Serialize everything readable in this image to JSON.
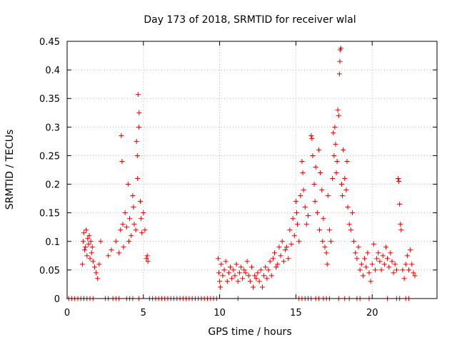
{
  "chart_data": {
    "type": "scatter",
    "title": "Day 173 of 2018, SRMTID for receiver wlal",
    "xlabel": "GPS time / hours",
    "ylabel": "SRMTID / TECUs",
    "xlim": [
      0,
      24.25
    ],
    "ylim": [
      0,
      0.45
    ],
    "xticks": [
      0,
      5,
      10,
      15,
      20
    ],
    "yticks": [
      0,
      0.05,
      0.1,
      0.15,
      0.2,
      0.25,
      0.3,
      0.35,
      0.4,
      0.45
    ],
    "xtick_labels": [
      "0",
      "5",
      "10",
      "15",
      "20"
    ],
    "ytick_labels": [
      "0",
      "0.05",
      "0.1",
      "0.15",
      "0.2",
      "0.25",
      "0.3",
      "0.35",
      "0.4",
      "0.45"
    ],
    "grid": true,
    "marker": "+",
    "color": "#e00000",
    "series": [
      {
        "name": "SRMTID",
        "points": [
          [
            1.0,
            0.06
          ],
          [
            1.05,
            0.1
          ],
          [
            1.1,
            0.115
          ],
          [
            1.15,
            0.085
          ],
          [
            1.2,
            0.09
          ],
          [
            1.25,
            0.12
          ],
          [
            1.3,
            0.075
          ],
          [
            1.35,
            0.105
          ],
          [
            1.4,
            0.095
          ],
          [
            1.45,
            0.11
          ],
          [
            1.5,
            0.07
          ],
          [
            1.55,
            0.1
          ],
          [
            1.6,
            0.08
          ],
          [
            1.65,
            0.09
          ],
          [
            1.7,
            0.065
          ],
          [
            1.8,
            0.055
          ],
          [
            1.9,
            0.045
          ],
          [
            2.0,
            0.035
          ],
          [
            2.1,
            0.06
          ],
          [
            2.2,
            0.1
          ],
          [
            2.7,
            0.075
          ],
          [
            2.9,
            0.085
          ],
          [
            3.2,
            0.1
          ],
          [
            3.4,
            0.08
          ],
          [
            3.5,
            0.12
          ],
          [
            3.55,
            0.285
          ],
          [
            3.6,
            0.24
          ],
          [
            3.65,
            0.13
          ],
          [
            3.7,
            0.09
          ],
          [
            3.8,
            0.15
          ],
          [
            3.9,
            0.125
          ],
          [
            4.0,
            0.2
          ],
          [
            4.05,
            0.1
          ],
          [
            4.1,
            0.14
          ],
          [
            4.2,
            0.11
          ],
          [
            4.3,
            0.18
          ],
          [
            4.35,
            0.16
          ],
          [
            4.4,
            0.13
          ],
          [
            4.5,
            0.12
          ],
          [
            4.55,
            0.275
          ],
          [
            4.6,
            0.25
          ],
          [
            4.62,
            0.21
          ],
          [
            4.65,
            0.357
          ],
          [
            4.7,
            0.3
          ],
          [
            4.72,
            0.325
          ],
          [
            4.8,
            0.17
          ],
          [
            4.85,
            0.14
          ],
          [
            4.9,
            0.115
          ],
          [
            5.0,
            0.15
          ],
          [
            5.1,
            0.12
          ],
          [
            5.2,
            0.07
          ],
          [
            5.25,
            0.075
          ],
          [
            5.3,
            0.065
          ],
          [
            9.9,
            0.07
          ],
          [
            9.95,
            0.045
          ],
          [
            10.0,
            0.03
          ],
          [
            10.05,
            0.02
          ],
          [
            10.1,
            0.06
          ],
          [
            10.2,
            0.04
          ],
          [
            10.3,
            0.05
          ],
          [
            10.4,
            0.065
          ],
          [
            10.5,
            0.03
          ],
          [
            10.6,
            0.045
          ],
          [
            10.7,
            0.055
          ],
          [
            10.8,
            0.035
          ],
          [
            10.9,
            0.05
          ],
          [
            11.0,
            0.04
          ],
          [
            11.1,
            0.06
          ],
          [
            11.2,
            0.03
          ],
          [
            11.3,
            0.045
          ],
          [
            11.4,
            0.055
          ],
          [
            11.5,
            0.035
          ],
          [
            11.6,
            0.05
          ],
          [
            11.7,
            0.045
          ],
          [
            11.8,
            0.065
          ],
          [
            11.9,
            0.04
          ],
          [
            12.0,
            0.03
          ],
          [
            12.1,
            0.055
          ],
          [
            12.2,
            0.02
          ],
          [
            12.3,
            0.04
          ],
          [
            12.4,
            0.035
          ],
          [
            12.5,
            0.045
          ],
          [
            12.6,
            0.03
          ],
          [
            12.7,
            0.05
          ],
          [
            12.8,
            0.02
          ],
          [
            12.9,
            0.04
          ],
          [
            13.0,
            0.055
          ],
          [
            13.1,
            0.035
          ],
          [
            13.2,
            0.05
          ],
          [
            13.3,
            0.065
          ],
          [
            13.4,
            0.04
          ],
          [
            13.5,
            0.07
          ],
          [
            13.6,
            0.08
          ],
          [
            13.7,
            0.055
          ],
          [
            13.8,
            0.06
          ],
          [
            13.9,
            0.09
          ],
          [
            14.0,
            0.075
          ],
          [
            14.1,
            0.1
          ],
          [
            14.2,
            0.065
          ],
          [
            14.3,
            0.085
          ],
          [
            14.4,
            0.09
          ],
          [
            14.5,
            0.07
          ],
          [
            14.6,
            0.12
          ],
          [
            14.7,
            0.095
          ],
          [
            14.8,
            0.14
          ],
          [
            14.9,
            0.11
          ],
          [
            15.0,
            0.17
          ],
          [
            15.05,
            0.15
          ],
          [
            15.1,
            0.13
          ],
          [
            15.2,
            0.1
          ],
          [
            15.3,
            0.18
          ],
          [
            15.4,
            0.24
          ],
          [
            15.45,
            0.22
          ],
          [
            15.5,
            0.19
          ],
          [
            15.6,
            0.16
          ],
          [
            15.7,
            0.13
          ],
          [
            15.8,
            0.145
          ],
          [
            16.0,
            0.285
          ],
          [
            16.05,
            0.28
          ],
          [
            16.1,
            0.25
          ],
          [
            16.2,
            0.2
          ],
          [
            16.25,
            0.17
          ],
          [
            16.3,
            0.23
          ],
          [
            16.4,
            0.15
          ],
          [
            16.5,
            0.26
          ],
          [
            16.55,
            0.12
          ],
          [
            16.6,
            0.22
          ],
          [
            16.7,
            0.19
          ],
          [
            16.75,
            0.1
          ],
          [
            16.8,
            0.14
          ],
          [
            16.9,
            0.09
          ],
          [
            17.0,
            0.08
          ],
          [
            17.05,
            0.06
          ],
          [
            17.1,
            0.18
          ],
          [
            17.2,
            0.12
          ],
          [
            17.3,
            0.1
          ],
          [
            17.4,
            0.21
          ],
          [
            17.45,
            0.29
          ],
          [
            17.5,
            0.25
          ],
          [
            17.55,
            0.3
          ],
          [
            17.6,
            0.27
          ],
          [
            17.65,
            0.22
          ],
          [
            17.7,
            0.24
          ],
          [
            17.75,
            0.33
          ],
          [
            17.8,
            0.32
          ],
          [
            17.85,
            0.393
          ],
          [
            17.88,
            0.415
          ],
          [
            17.9,
            0.435
          ],
          [
            17.95,
            0.438
          ],
          [
            18.0,
            0.2
          ],
          [
            18.05,
            0.18
          ],
          [
            18.1,
            0.26
          ],
          [
            18.2,
            0.21
          ],
          [
            18.3,
            0.19
          ],
          [
            18.35,
            0.24
          ],
          [
            18.4,
            0.16
          ],
          [
            18.5,
            0.13
          ],
          [
            18.6,
            0.12
          ],
          [
            18.7,
            0.15
          ],
          [
            18.8,
            0.1
          ],
          [
            18.9,
            0.08
          ],
          [
            19.0,
            0.07
          ],
          [
            19.1,
            0.09
          ],
          [
            19.2,
            0.05
          ],
          [
            19.3,
            0.06
          ],
          [
            19.4,
            0.04
          ],
          [
            19.5,
            0.07
          ],
          [
            19.6,
            0.055
          ],
          [
            19.7,
            0.08
          ],
          [
            19.8,
            0.045
          ],
          [
            19.9,
            0.03
          ],
          [
            20.0,
            0.06
          ],
          [
            20.1,
            0.095
          ],
          [
            20.2,
            0.05
          ],
          [
            20.3,
            0.07
          ],
          [
            20.4,
            0.08
          ],
          [
            20.5,
            0.065
          ],
          [
            20.6,
            0.05
          ],
          [
            20.7,
            0.075
          ],
          [
            20.8,
            0.06
          ],
          [
            20.9,
            0.09
          ],
          [
            21.0,
            0.07
          ],
          [
            21.1,
            0.055
          ],
          [
            21.2,
            0.08
          ],
          [
            21.3,
            0.065
          ],
          [
            21.4,
            0.045
          ],
          [
            21.5,
            0.06
          ],
          [
            21.6,
            0.05
          ],
          [
            21.7,
            0.21
          ],
          [
            21.75,
            0.205
          ],
          [
            21.8,
            0.165
          ],
          [
            21.85,
            0.13
          ],
          [
            21.9,
            0.12
          ],
          [
            22.0,
            0.05
          ],
          [
            22.1,
            0.035
          ],
          [
            22.2,
            0.06
          ],
          [
            22.3,
            0.075
          ],
          [
            22.4,
            0.05
          ],
          [
            22.5,
            0.085
          ],
          [
            22.6,
            0.06
          ],
          [
            22.7,
            0.045
          ],
          [
            22.8,
            0.04
          ],
          [
            0.1,
            0
          ],
          [
            0.3,
            0
          ],
          [
            0.5,
            0
          ],
          [
            0.7,
            0
          ],
          [
            0.9,
            0
          ],
          [
            1.1,
            0
          ],
          [
            1.3,
            0
          ],
          [
            1.5,
            0
          ],
          [
            1.7,
            0
          ],
          [
            2.5,
            0
          ],
          [
            2.7,
            0
          ],
          [
            3.0,
            0
          ],
          [
            3.2,
            0
          ],
          [
            3.4,
            0
          ],
          [
            3.9,
            0
          ],
          [
            4.1,
            0
          ],
          [
            4.3,
            0
          ],
          [
            4.7,
            0
          ],
          [
            5.4,
            0
          ],
          [
            5.6,
            0
          ],
          [
            5.8,
            0
          ],
          [
            6.0,
            0
          ],
          [
            6.2,
            0
          ],
          [
            6.4,
            0
          ],
          [
            6.6,
            0
          ],
          [
            6.8,
            0
          ],
          [
            7.0,
            0
          ],
          [
            7.2,
            0
          ],
          [
            7.4,
            0
          ],
          [
            7.6,
            0
          ],
          [
            7.8,
            0
          ],
          [
            8.0,
            0
          ],
          [
            8.2,
            0
          ],
          [
            8.4,
            0
          ],
          [
            8.6,
            0
          ],
          [
            8.8,
            0
          ],
          [
            9.0,
            0
          ],
          [
            9.2,
            0
          ],
          [
            9.4,
            0
          ],
          [
            9.6,
            0
          ],
          [
            9.8,
            0
          ],
          [
            11.2,
            0
          ],
          [
            15.2,
            0
          ],
          [
            15.4,
            0
          ],
          [
            15.6,
            0
          ],
          [
            15.8,
            0
          ],
          [
            16.0,
            0
          ],
          [
            16.3,
            0
          ],
          [
            16.5,
            0
          ],
          [
            16.8,
            0
          ],
          [
            17.0,
            0
          ],
          [
            17.2,
            0
          ],
          [
            17.8,
            0
          ],
          [
            18.2,
            0
          ],
          [
            18.5,
            0
          ],
          [
            19.0,
            0
          ],
          [
            19.2,
            0
          ],
          [
            19.8,
            0
          ],
          [
            21.0,
            0
          ],
          [
            21.6,
            0
          ],
          [
            21.8,
            0
          ],
          [
            22.2,
            0
          ],
          [
            22.4,
            0
          ]
        ]
      }
    ]
  }
}
